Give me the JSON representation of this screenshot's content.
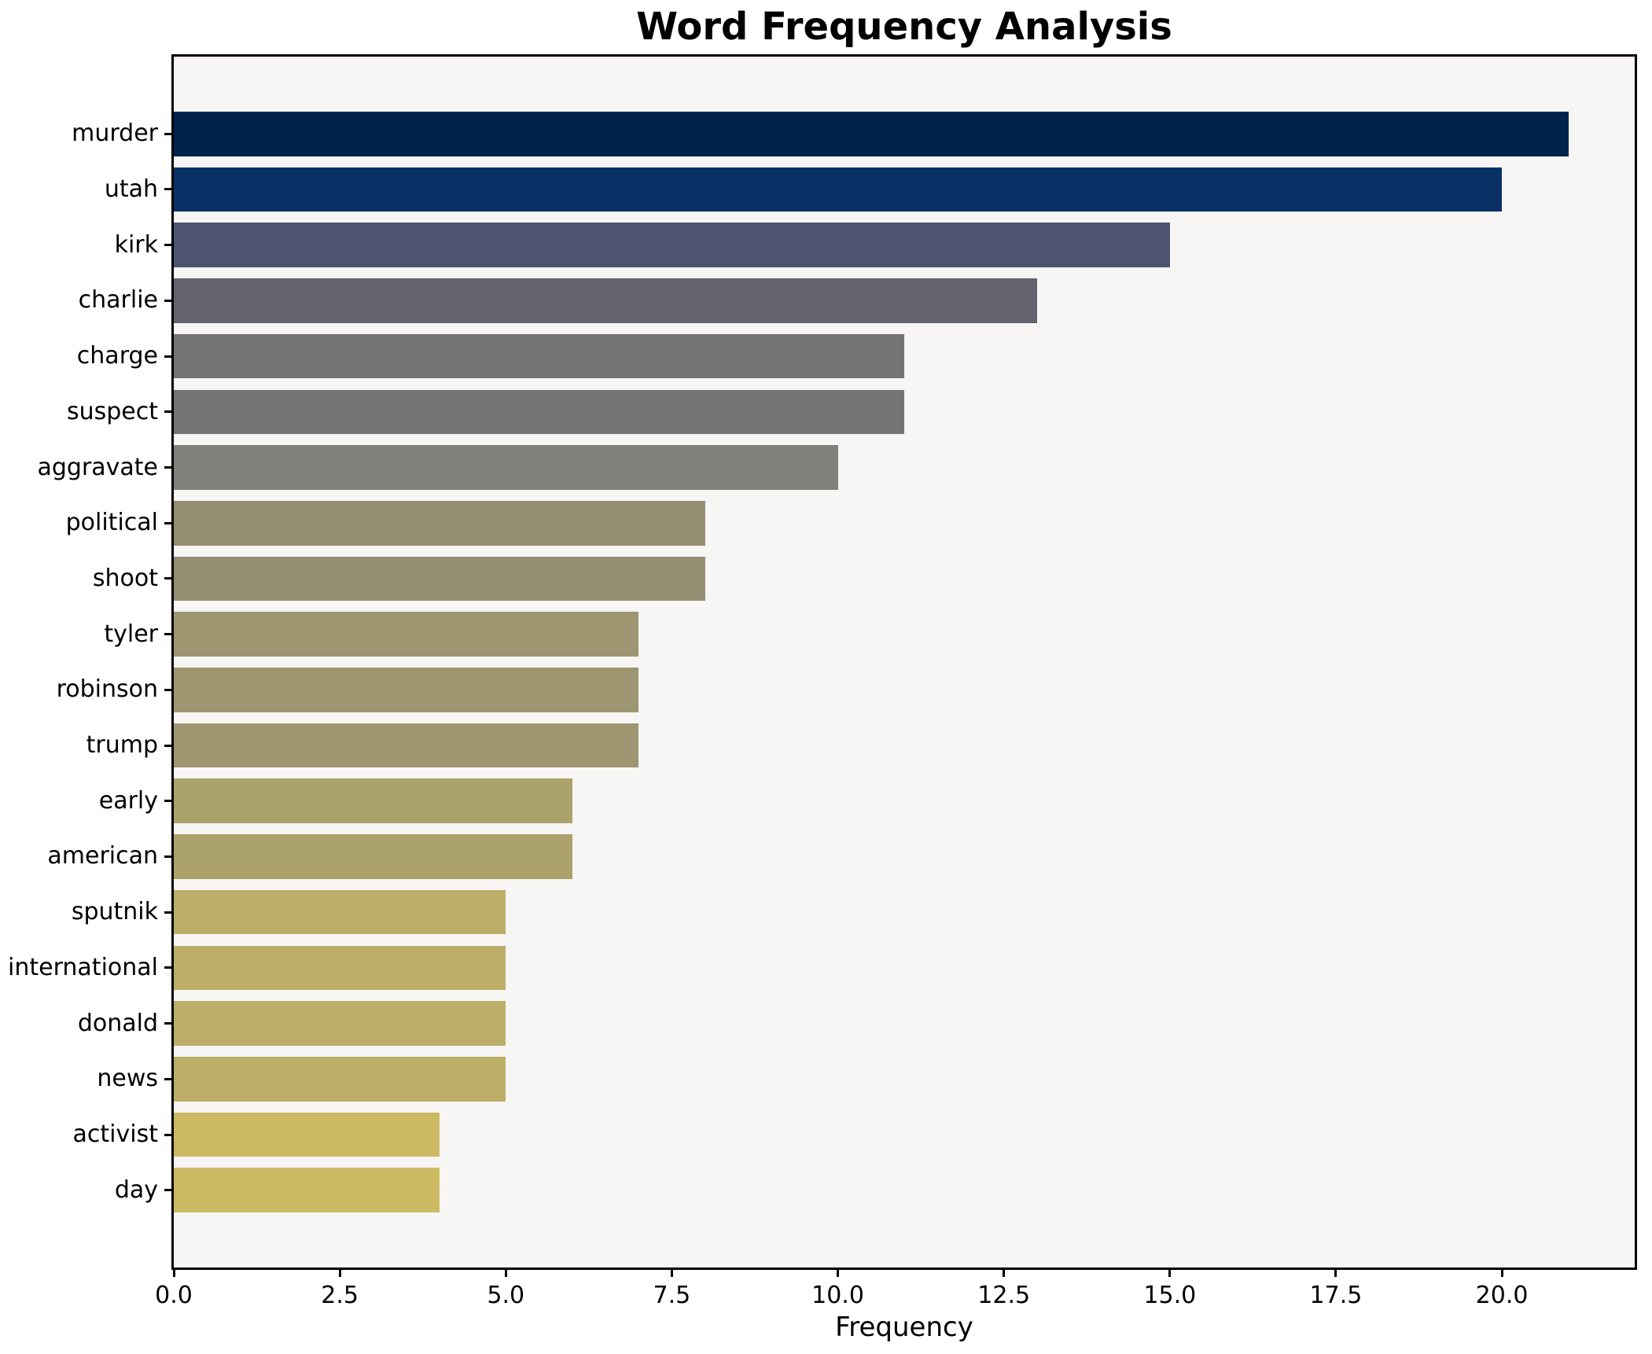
{
  "chart_data": {
    "type": "bar",
    "orientation": "horizontal",
    "title": "Word Frequency Analysis",
    "xlabel": "Frequency",
    "ylabel": "",
    "grid": false,
    "legend_position": "none",
    "xlim": [
      0,
      22
    ],
    "x_tick_values": [
      0,
      2.5,
      5,
      7.5,
      10,
      12.5,
      15,
      17.5,
      20
    ],
    "x_tick_labels": [
      "0.0",
      "2.5",
      "5.0",
      "7.5",
      "10.0",
      "12.5",
      "15.0",
      "17.5",
      "20.0"
    ],
    "categories": [
      "murder",
      "utah",
      "kirk",
      "charlie",
      "charge",
      "suspect",
      "aggravate",
      "political",
      "shoot",
      "tyler",
      "robinson",
      "trump",
      "early",
      "american",
      "sputnik",
      "international",
      "donald",
      "news",
      "activist",
      "day"
    ],
    "values": [
      21,
      20,
      15,
      13,
      11,
      11,
      10,
      8,
      8,
      7,
      7,
      7,
      6,
      6,
      5,
      5,
      5,
      5,
      4,
      4
    ],
    "bar_colors": [
      "#00234e",
      "#0a3166",
      "#4d5470",
      "#63636f",
      "#757472",
      "#757472",
      "#81807a",
      "#958e72",
      "#958e72",
      "#9e9670",
      "#9e9670",
      "#9e9670",
      "#aba26c",
      "#aba26c",
      "#bcae68",
      "#bcae68",
      "#bcae68",
      "#bcae68",
      "#ccba62",
      "#ccba62"
    ],
    "colors": {
      "figure_bg": "#ffffff",
      "plot_bg": "#f7f6f5",
      "spine": "#000000",
      "text": "#000000"
    }
  }
}
